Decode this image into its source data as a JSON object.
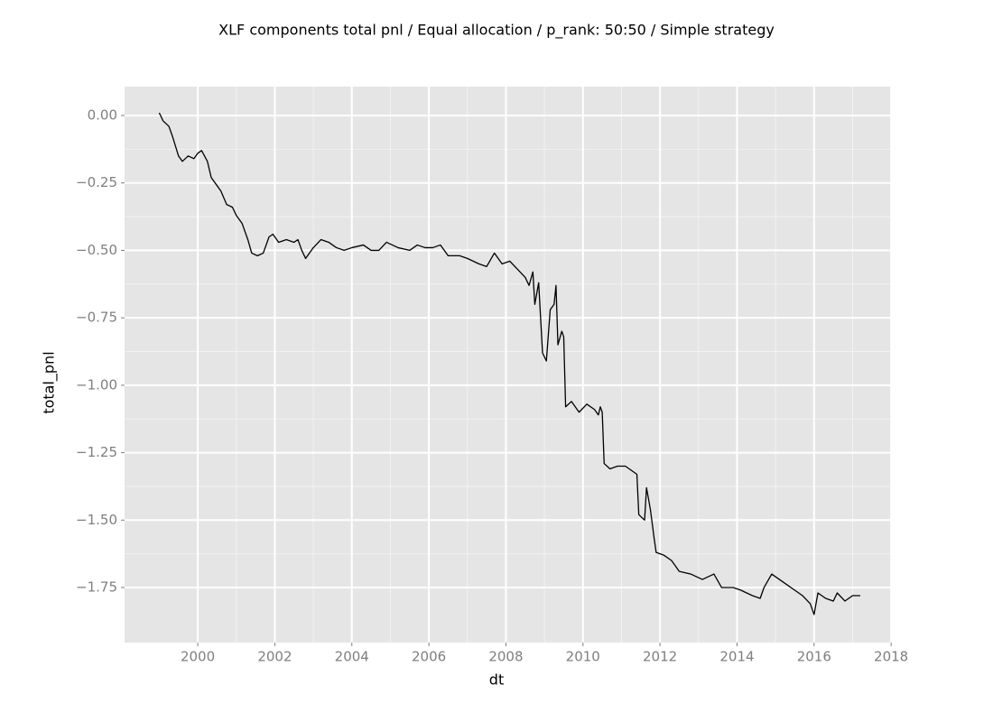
{
  "chart_data": {
    "type": "line",
    "title": "XLF components total pnl / Equal allocation / p_rank: 50:50 / Simple strategy",
    "x_label": "dt",
    "y_label": "total_pnl",
    "grid": true,
    "xlim": [
      1998.1,
      2018.02
    ],
    "ylim": [
      -1.954,
      0.107
    ],
    "xticks": [
      2000,
      2002,
      2004,
      2006,
      2008,
      2010,
      2012,
      2014,
      2016,
      2018
    ],
    "yticks": [
      {
        "value": 0,
        "label": "0.00"
      },
      {
        "value": -0.25,
        "label": "−0.25"
      },
      {
        "value": -0.5,
        "label": "−0.50"
      },
      {
        "value": -0.75,
        "label": "−0.75"
      },
      {
        "value": -1,
        "label": "−1.00"
      },
      {
        "value": -1.25,
        "label": "−1.25"
      },
      {
        "value": -1.5,
        "label": "−1.50"
      },
      {
        "value": -1.75,
        "label": "−1.75"
      }
    ],
    "x": [
      1999.0,
      1999.1,
      1999.25,
      1999.35,
      1999.5,
      1999.6,
      1999.75,
      1999.9,
      2000.0,
      2000.1,
      2000.25,
      2000.35,
      2000.5,
      2000.6,
      2000.75,
      2000.9,
      2001.0,
      2001.15,
      2001.3,
      2001.4,
      2001.55,
      2001.7,
      2001.85,
      2001.95,
      2002.1,
      2002.3,
      2002.5,
      2002.6,
      2002.7,
      2002.8,
      2003.0,
      2003.2,
      2003.4,
      2003.6,
      2003.8,
      2004.0,
      2004.3,
      2004.5,
      2004.7,
      2004.9,
      2005.2,
      2005.5,
      2005.7,
      2005.9,
      2006.1,
      2006.3,
      2006.5,
      2006.8,
      2007.0,
      2007.3,
      2007.5,
      2007.7,
      2007.9,
      2008.1,
      2008.3,
      2008.5,
      2008.6,
      2008.7,
      2008.75,
      2008.85,
      2008.95,
      2009.05,
      2009.15,
      2009.25,
      2009.3,
      2009.35,
      2009.45,
      2009.5,
      2009.55,
      2009.7,
      2009.9,
      2010.1,
      2010.3,
      2010.4,
      2010.45,
      2010.5,
      2010.55,
      2010.7,
      2010.9,
      2011.1,
      2011.3,
      2011.4,
      2011.45,
      2011.6,
      2011.65,
      2011.75,
      2011.85,
      2011.9,
      2012.1,
      2012.3,
      2012.5,
      2012.8,
      2013.1,
      2013.4,
      2013.6,
      2013.9,
      2014.1,
      2014.4,
      2014.6,
      2014.7,
      2014.9,
      2015.1,
      2015.3,
      2015.5,
      2015.7,
      2015.9,
      2016.0,
      2016.1,
      2016.3,
      2016.5,
      2016.6,
      2016.8,
      2017.0,
      2017.2
    ],
    "series": [
      {
        "color": "#000000",
        "values": [
          0.01,
          -0.02,
          -0.04,
          -0.08,
          -0.15,
          -0.17,
          -0.15,
          -0.16,
          -0.14,
          -0.13,
          -0.17,
          -0.23,
          -0.26,
          -0.28,
          -0.33,
          -0.34,
          -0.37,
          -0.4,
          -0.46,
          -0.51,
          -0.52,
          -0.51,
          -0.45,
          -0.44,
          -0.47,
          -0.46,
          -0.47,
          -0.46,
          -0.5,
          -0.53,
          -0.49,
          -0.46,
          -0.47,
          -0.49,
          -0.5,
          -0.49,
          -0.48,
          -0.5,
          -0.5,
          -0.47,
          -0.49,
          -0.5,
          -0.48,
          -0.49,
          -0.49,
          -0.48,
          -0.52,
          -0.52,
          -0.53,
          -0.55,
          -0.56,
          -0.51,
          -0.55,
          -0.54,
          -0.57,
          -0.6,
          -0.63,
          -0.58,
          -0.7,
          -0.62,
          -0.88,
          -0.91,
          -0.72,
          -0.7,
          -0.63,
          -0.85,
          -0.8,
          -0.82,
          -1.08,
          -1.06,
          -1.1,
          -1.07,
          -1.09,
          -1.11,
          -1.08,
          -1.1,
          -1.29,
          -1.31,
          -1.3,
          -1.3,
          -1.32,
          -1.33,
          -1.48,
          -1.5,
          -1.38,
          -1.46,
          -1.57,
          -1.62,
          -1.63,
          -1.65,
          -1.69,
          -1.7,
          -1.72,
          -1.7,
          -1.75,
          -1.75,
          -1.76,
          -1.78,
          -1.79,
          -1.75,
          -1.7,
          -1.72,
          -1.74,
          -1.76,
          -1.78,
          -1.81,
          -1.85,
          -1.77,
          -1.79,
          -1.8,
          -1.77,
          -1.8,
          -1.78,
          -1.78
        ]
      }
    ]
  }
}
